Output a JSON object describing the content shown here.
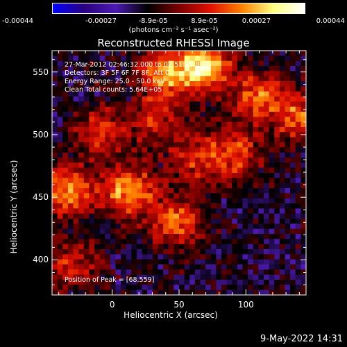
{
  "colorbar": {
    "ticks": [
      "-0.00044",
      "-0.00027",
      "-8.9e-05",
      "8.9e-05",
      "0.00027",
      "0.00044"
    ],
    "units": "(photons cm⁻² s⁻¹ asec⁻²)"
  },
  "chart_data": {
    "type": "heatmap",
    "title": "Reconstructed RHESSI Image",
    "xlabel": "Heliocentric X (arcsec)",
    "ylabel": "Heliocentric Y (arcsec)",
    "xlim": [
      -45,
      145
    ],
    "ylim": [
      372,
      567
    ],
    "x_ticks": [
      "0",
      "50",
      "100"
    ],
    "y_ticks": [
      "400",
      "450",
      "500",
      "550"
    ],
    "clim": [
      -0.00044,
      0.00044
    ],
    "peak": [
      68,
      559
    ],
    "info_lines": [
      "27-Mar-2012 02:46:32.000 to 02:51:28.000",
      "Detectors: 3F 5F 6F 7F 8F, Att 0",
      "Energy Range: 25.0 - 50.0 keV",
      "Clean    Total counts: 5.64E+05"
    ],
    "peak_label": "Position of Peak = [68,559]",
    "bright_sources": [
      {
        "x": 70,
        "y": 555,
        "amp": 0.00044
      },
      {
        "x": 40,
        "y": 548,
        "amp": 0.00034
      },
      {
        "x": 110,
        "y": 530,
        "amp": 0.0003
      },
      {
        "x": 140,
        "y": 515,
        "amp": 0.00028
      },
      {
        "x": -35,
        "y": 455,
        "amp": 0.00036
      },
      {
        "x": 12,
        "y": 455,
        "amp": 0.00036
      },
      {
        "x": 47,
        "y": 430,
        "amp": 0.0003
      },
      {
        "x": 92,
        "y": 485,
        "amp": 0.00026
      },
      {
        "x": -8,
        "y": 502,
        "amp": 0.00024
      },
      {
        "x": 32,
        "y": 510,
        "amp": 0.0002
      },
      {
        "x": 62,
        "y": 480,
        "amp": 0.00022
      },
      {
        "x": -30,
        "y": 395,
        "amp": 0.00022
      }
    ]
  },
  "colors": {
    "background": "#000000",
    "foreground": "#ffffff",
    "colormap": [
      "#0000ff",
      "#2a0080",
      "#4d1ab3",
      "#000000",
      "#7a0000",
      "#e01000",
      "#ff8000",
      "#ffff80",
      "#ffffff"
    ]
  },
  "footer": "9-May-2022 14:31"
}
